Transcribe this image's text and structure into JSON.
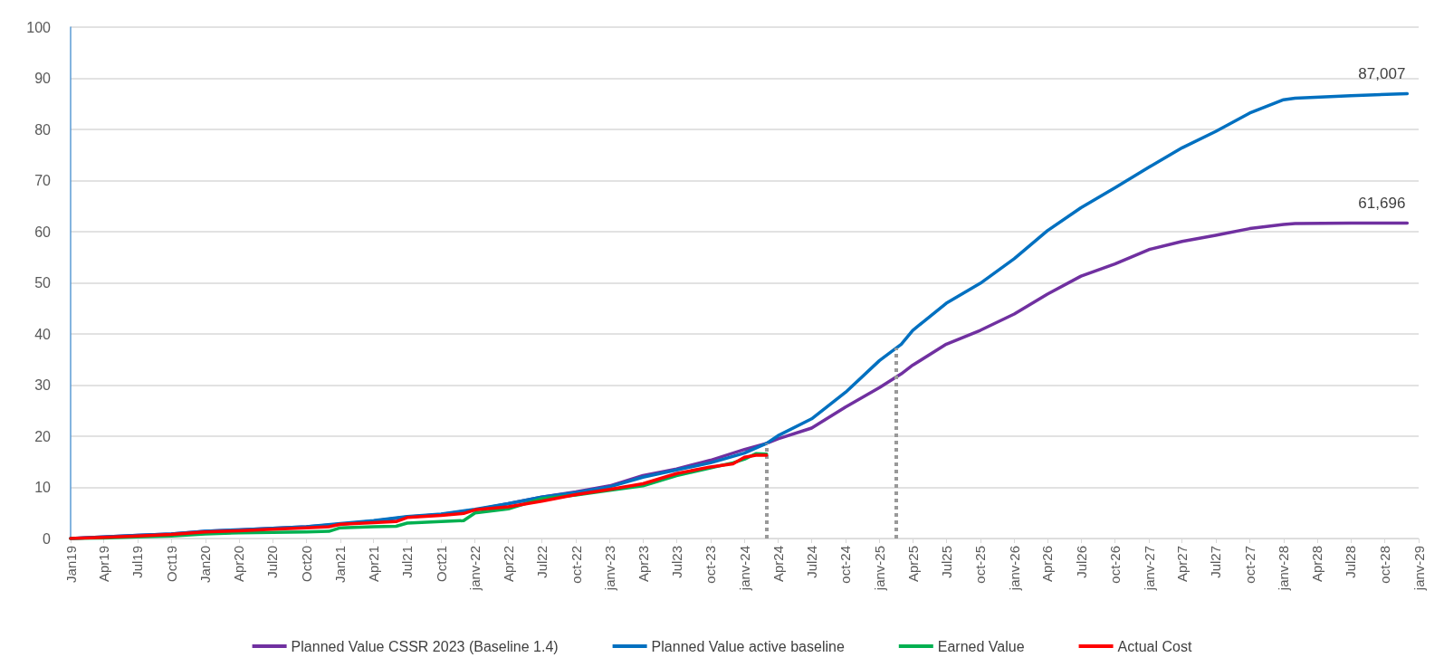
{
  "chart_data": {
    "type": "line",
    "xlim": [
      "2019-01",
      "2029-01"
    ],
    "xticks": [
      {
        "value": "2019-01",
        "label": "Jan19"
      },
      {
        "value": "2019-04",
        "label": "Apr19"
      },
      {
        "value": "2019-07",
        "label": "Jul19"
      },
      {
        "value": "2019-10",
        "label": "Oct19"
      },
      {
        "value": "2020-01",
        "label": "Jan20"
      },
      {
        "value": "2020-04",
        "label": "Apr20"
      },
      {
        "value": "2020-07",
        "label": "Jul20"
      },
      {
        "value": "2020-10",
        "label": "Oct20"
      },
      {
        "value": "2021-01",
        "label": "Jan21"
      },
      {
        "value": "2021-04",
        "label": "Apr21"
      },
      {
        "value": "2021-07",
        "label": "Jul21"
      },
      {
        "value": "2021-10",
        "label": "Oct21"
      },
      {
        "value": "2022-01",
        "label": "janv-22"
      },
      {
        "value": "2022-04",
        "label": "Apr22"
      },
      {
        "value": "2022-07",
        "label": "Jul22"
      },
      {
        "value": "2022-10",
        "label": "oct-22"
      },
      {
        "value": "2023-01",
        "label": "janv-23"
      },
      {
        "value": "2023-04",
        "label": "Apr23"
      },
      {
        "value": "2023-07",
        "label": "Jul23"
      },
      {
        "value": "2023-10",
        "label": "oct-23"
      },
      {
        "value": "2024-01",
        "label": "janv-24"
      },
      {
        "value": "2024-04",
        "label": "Apr24"
      },
      {
        "value": "2024-07",
        "label": "Jul24"
      },
      {
        "value": "2024-10",
        "label": "oct-24"
      },
      {
        "value": "2025-01",
        "label": "janv-25"
      },
      {
        "value": "2025-04",
        "label": "Apr25"
      },
      {
        "value": "2025-07",
        "label": "Jul25"
      },
      {
        "value": "2025-10",
        "label": "oct-25"
      },
      {
        "value": "2026-01",
        "label": "janv-26"
      },
      {
        "value": "2026-04",
        "label": "Apr26"
      },
      {
        "value": "2026-07",
        "label": "Jul26"
      },
      {
        "value": "2026-10",
        "label": "oct-26"
      },
      {
        "value": "2027-01",
        "label": "janv-27"
      },
      {
        "value": "2027-04",
        "label": "Apr27"
      },
      {
        "value": "2027-07",
        "label": "Jul27"
      },
      {
        "value": "2027-10",
        "label": "oct-27"
      },
      {
        "value": "2028-01",
        "label": "janv-28"
      },
      {
        "value": "2028-04",
        "label": "Apr28"
      },
      {
        "value": "2028-07",
        "label": "Jul28"
      },
      {
        "value": "2028-10",
        "label": "oct-28"
      },
      {
        "value": "2029-01",
        "label": "janv-29"
      }
    ],
    "ylim": [
      0,
      100
    ],
    "yticks": [
      0,
      10,
      20,
      30,
      40,
      50,
      60,
      70,
      80,
      90,
      100
    ],
    "grid": "y",
    "legend": "bottom",
    "marker": "none",
    "line_style": "solid",
    "series": [
      {
        "name": "Planned Value CSSR 2023 (Baseline 1.4)",
        "color": "#7030a0",
        "x": [
          "2019-01",
          "2019-04",
          "2019-07",
          "2019-10",
          "2020-01",
          "2020-04",
          "2020-07",
          "2020-10",
          "2021-01",
          "2021-04",
          "2021-07",
          "2021-10",
          "2022-01",
          "2022-04",
          "2022-07",
          "2022-10",
          "2023-01",
          "2023-04",
          "2023-07",
          "2023-10",
          "2024-01",
          "2024-03",
          "2024-04",
          "2024-07",
          "2024-10",
          "2025-01",
          "2025-03",
          "2025-04",
          "2025-07",
          "2025-10",
          "2026-01",
          "2026-04",
          "2026-07",
          "2026-10",
          "2027-01",
          "2027-04",
          "2027-07",
          "2027-10",
          "2028-01",
          "2028-02",
          "2028-07",
          "2028-12"
        ],
        "values": [
          0,
          0.3,
          0.6,
          0.9,
          1.4,
          1.7,
          2.0,
          2.3,
          2.8,
          3.4,
          4.2,
          4.7,
          5.6,
          6.8,
          8.1,
          9.1,
          10.3,
          12.3,
          13.6,
          15.3,
          17.4,
          18.6,
          19.5,
          21.6,
          25.7,
          29.5,
          32.2,
          33.9,
          38.0,
          40.7,
          43.9,
          47.8,
          51.3,
          53.7,
          56.5,
          58.1,
          59.3,
          60.6,
          61.4,
          61.6,
          61.7,
          61.7
        ]
      },
      {
        "name": "Planned Value active baseline",
        "color": "#0070c0",
        "x": [
          "2019-01",
          "2019-04",
          "2019-07",
          "2019-10",
          "2020-01",
          "2020-04",
          "2020-07",
          "2020-10",
          "2021-01",
          "2021-04",
          "2021-07",
          "2021-10",
          "2022-01",
          "2022-04",
          "2022-07",
          "2022-10",
          "2023-01",
          "2023-04",
          "2023-07",
          "2023-10",
          "2024-01",
          "2024-03",
          "2024-04",
          "2024-07",
          "2024-10",
          "2025-01",
          "2025-03",
          "2025-04",
          "2025-07",
          "2025-10",
          "2026-01",
          "2026-04",
          "2026-07",
          "2026-10",
          "2027-01",
          "2027-04",
          "2027-07",
          "2027-10",
          "2028-01",
          "2028-02",
          "2028-07",
          "2028-12"
        ],
        "values": [
          0,
          0.3,
          0.6,
          0.9,
          1.4,
          1.7,
          2.0,
          2.3,
          2.9,
          3.5,
          4.3,
          4.8,
          5.7,
          6.8,
          8.1,
          9.0,
          10.1,
          12.0,
          13.4,
          14.8,
          16.7,
          18.6,
          20.1,
          23.4,
          28.6,
          34.8,
          38.0,
          40.7,
          46.0,
          49.9,
          54.7,
          60.2,
          64.7,
          68.6,
          72.6,
          76.4,
          79.6,
          83.2,
          85.8,
          86.1,
          86.6,
          87.0
        ]
      },
      {
        "name": "Earned Value",
        "color": "#00b050",
        "x": [
          "2019-01",
          "2019-04",
          "2019-07",
          "2019-10",
          "2020-01",
          "2020-04",
          "2020-07",
          "2020-10",
          "2020-12",
          "2021-01",
          "2021-04",
          "2021-06",
          "2021-07",
          "2021-10",
          "2021-12",
          "2022-01",
          "2022-04",
          "2022-07",
          "2022-10",
          "2023-01",
          "2023-04",
          "2023-07",
          "2023-10",
          "2023-12",
          "2024-01",
          "2024-02",
          "2024-03"
        ],
        "values": [
          0,
          0.1,
          0.3,
          0.5,
          0.9,
          1.1,
          1.2,
          1.3,
          1.4,
          2.1,
          2.3,
          2.4,
          3.0,
          3.3,
          3.5,
          5.0,
          5.8,
          7.8,
          8.5,
          9.4,
          10.3,
          12.3,
          13.8,
          14.8,
          15.5,
          16.6,
          16.5
        ]
      },
      {
        "name": "Actual Cost",
        "color": "#ff0000",
        "x": [
          "2019-01",
          "2019-04",
          "2019-07",
          "2019-10",
          "2020-01",
          "2020-04",
          "2020-07",
          "2020-10",
          "2020-12",
          "2021-01",
          "2021-04",
          "2021-06",
          "2021-07",
          "2021-10",
          "2021-12",
          "2022-01",
          "2022-04",
          "2022-07",
          "2022-10",
          "2023-01",
          "2023-04",
          "2023-07",
          "2023-10",
          "2023-12",
          "2024-01",
          "2024-02",
          "2024-03"
        ],
        "values": [
          0,
          0.2,
          0.5,
          0.8,
          1.3,
          1.5,
          1.8,
          2.1,
          2.3,
          2.8,
          3.1,
          3.3,
          4.1,
          4.5,
          4.9,
          5.6,
          6.2,
          7.3,
          8.6,
          9.6,
          10.7,
          12.7,
          14.0,
          14.6,
          15.9,
          16.3,
          16.3
        ]
      }
    ],
    "annotations": [
      {
        "text": "87,007",
        "x": "2028-12",
        "y": 87.0
      },
      {
        "text": "61,696",
        "x": "2028-12",
        "y": 61.7
      }
    ],
    "ref_lines": [
      {
        "axis": "x",
        "value": "2024-03",
        "label": null,
        "color": "#999999",
        "line_style": "dotted"
      },
      {
        "axis": "x",
        "value": "2025-02-15",
        "label": null,
        "color": "#999999",
        "line_style": "dotted"
      }
    ]
  }
}
